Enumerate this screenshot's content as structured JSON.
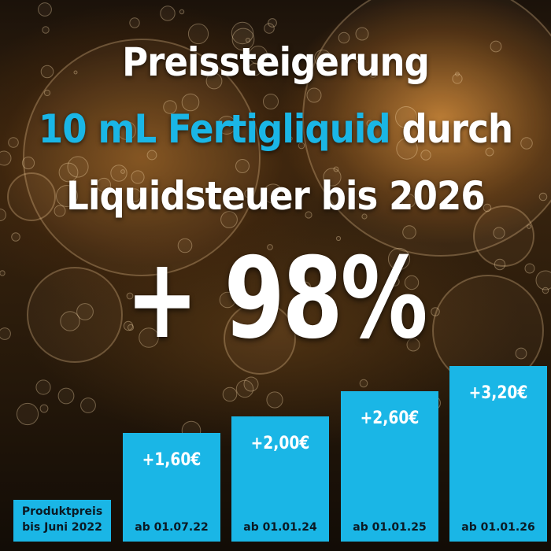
{
  "title": {
    "line1": "Preissteigerung",
    "line2_accent": "10 mL Fertigliquid",
    "line2_rest": " durch",
    "line3": "Liquidsteuer bis 2026"
  },
  "headline": "+ 98%",
  "colors": {
    "bar": "#1ab6e6",
    "accent": "#1ab6e6",
    "text": "#ffffff"
  },
  "chart_data": {
    "type": "bar",
    "categories": [
      "Produktpreis bis Juni 2022",
      "ab 01.07.22",
      "ab 01.01.24",
      "ab 01.01.25",
      "ab 01.01.26"
    ],
    "category_lines": [
      [
        "Produktpreis",
        "bis Juni 2022"
      ],
      [
        "ab 01.07.22"
      ],
      [
        "ab 01.01.24"
      ],
      [
        "ab 01.01.25"
      ],
      [
        "ab 01.01.26"
      ]
    ],
    "values": [
      0,
      1.6,
      2.0,
      2.6,
      3.2
    ],
    "value_labels": [
      "",
      "+1,60€",
      "+2,00€",
      "+2,60€",
      "+3,20€"
    ],
    "title": "",
    "xlabel": "",
    "ylabel": "",
    "ylim": [
      -1.0,
      3.2
    ]
  }
}
